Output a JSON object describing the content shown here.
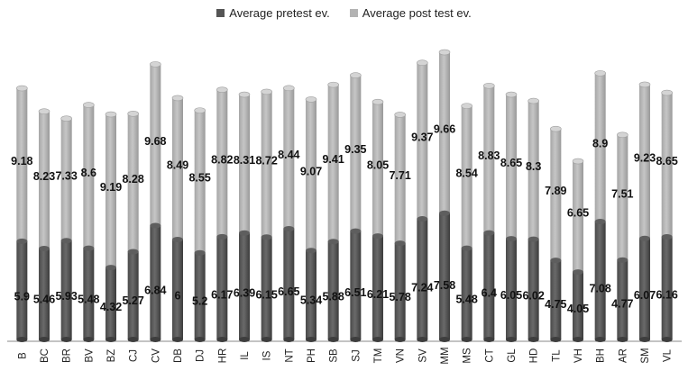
{
  "chart_data": {
    "type": "bar",
    "stacked": true,
    "categories": [
      "B",
      "BC",
      "BR",
      "BV",
      "BZ",
      "CJ",
      "CV",
      "DB",
      "DJ",
      "HR",
      "IL",
      "IS",
      "NT",
      "PH",
      "SB",
      "SJ",
      "TM",
      "VN",
      "SV",
      "MM",
      "MS",
      "CT",
      "GL",
      "HD",
      "TL",
      "VH",
      "BH",
      "AR",
      "SM",
      "VL"
    ],
    "series": [
      {
        "name": "Average pretest ev.",
        "color": "#555555",
        "values": [
          5.9,
          5.46,
          5.93,
          5.48,
          4.32,
          5.27,
          6.84,
          6,
          5.2,
          6.17,
          6.39,
          6.15,
          6.65,
          5.34,
          5.88,
          6.51,
          6.21,
          5.78,
          7.24,
          7.58,
          5.48,
          6.4,
          6.05,
          6.02,
          4.75,
          4.05,
          7.08,
          4.77,
          6.07,
          6.16
        ]
      },
      {
        "name": "Average post test ev.",
        "color": "#b3b3b3",
        "values": [
          9.18,
          8.23,
          7.33,
          8.6,
          9.19,
          8.28,
          9.68,
          8.49,
          8.55,
          8.82,
          8.31,
          8.72,
          8.44,
          9.07,
          9.41,
          9.35,
          8.05,
          7.71,
          9.37,
          9.66,
          8.54,
          8.83,
          8.65,
          8.3,
          7.89,
          6.65,
          8.9,
          7.51,
          9.23,
          8.65
        ]
      }
    ],
    "labels": {
      "pre": [
        "5.9",
        "5.46",
        "5.93",
        "5.48",
        "4.32",
        "5.27",
        "6.84",
        "6",
        "5.2",
        "6.17",
        "6.39",
        "6.15",
        "6.65",
        "5.34",
        "5.88",
        "6.51",
        "6.21",
        "5.78",
        "7.24",
        "7.58",
        "5.48",
        "6.4",
        "6.05",
        "6.02",
        "4.75",
        "4.05",
        "7.08",
        "4.77",
        "6.07",
        "6.16"
      ],
      "post": [
        "9.18",
        "8.23",
        "7.33",
        "8.6",
        "9.19",
        "8.28",
        "9.68",
        "8.49",
        "8.55",
        "8.82",
        "8.31",
        "8.72",
        "8.44",
        "9.07",
        "9.41",
        "9.35",
        "8.05",
        "7.71",
        "9.37",
        "9.66",
        "8.54",
        "8.83",
        "8.65",
        "8.3",
        "7.89",
        "6.65",
        "8.9",
        "7.51",
        "9.23",
        "8.65"
      ]
    },
    "legend_position": "top-center",
    "grid": false,
    "style": "3d-cylinder"
  }
}
